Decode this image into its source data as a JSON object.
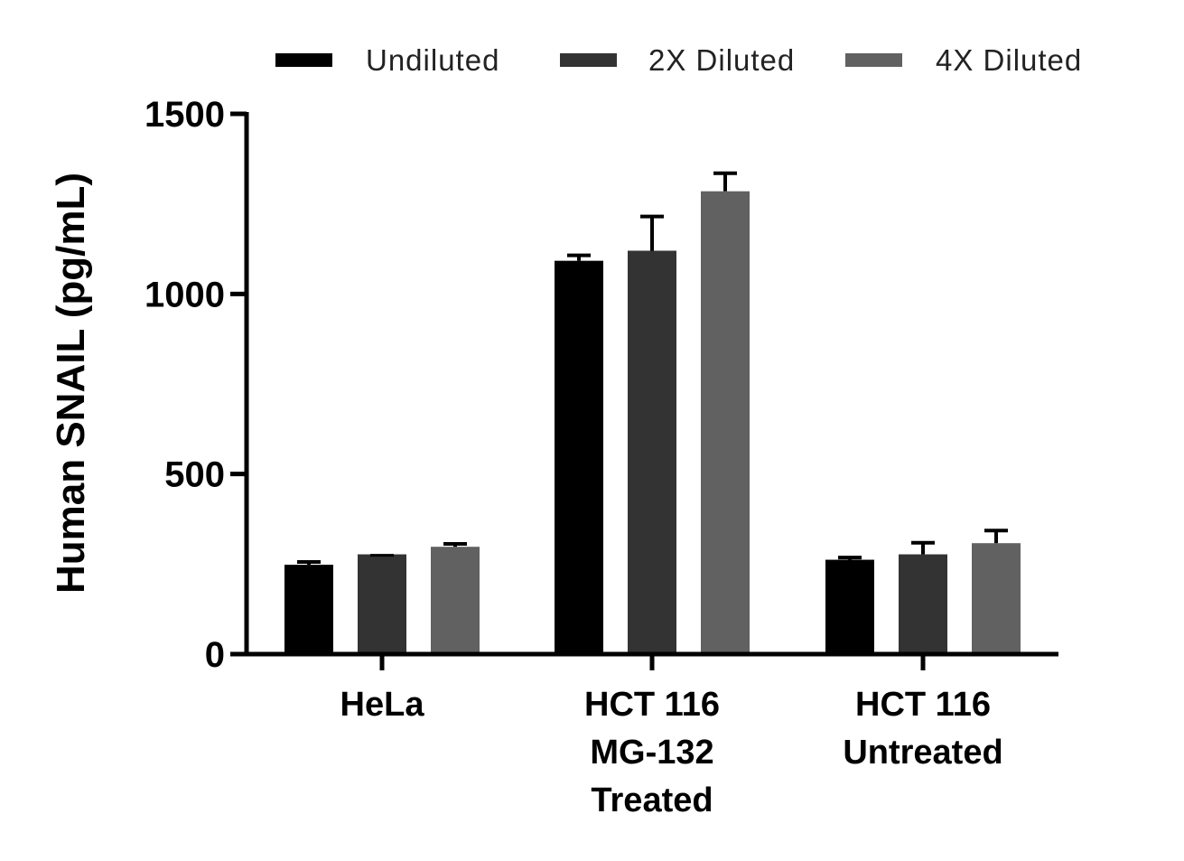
{
  "chart_data": {
    "type": "bar",
    "title": "",
    "xlabel": "",
    "ylabel": "Human SNAIL (pg/mL)",
    "ylim": [
      0,
      1500
    ],
    "yticks": [
      "0",
      "500",
      "1000",
      "1500"
    ],
    "grid": false,
    "legend_position": "top",
    "categories": [
      [
        "HeLa"
      ],
      [
        "HCT 116",
        "MG-132",
        "Treated"
      ],
      [
        "HCT 116",
        "Untreated"
      ]
    ],
    "series": [
      {
        "name": "Undiluted",
        "color": "#000000",
        "values": [
          248,
          1092,
          262
        ],
        "errors": [
          8,
          15,
          6
        ]
      },
      {
        "name": "2X Diluted",
        "color": "#333333",
        "values": [
          277,
          1120,
          277
        ],
        "errors": [
          0,
          95,
          32
        ]
      },
      {
        "name": "4X Diluted",
        "color": "#616161",
        "values": [
          298,
          1285,
          308
        ],
        "errors": [
          8,
          50,
          35
        ]
      }
    ]
  }
}
